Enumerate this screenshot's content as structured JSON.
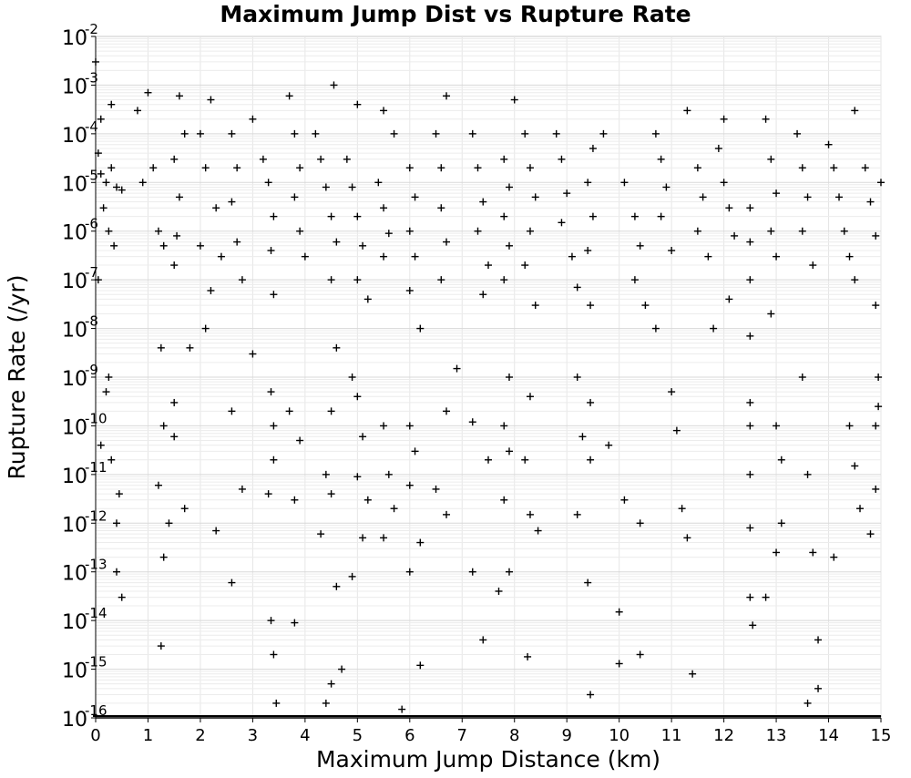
{
  "chart_data": {
    "type": "scatter",
    "title": "Maximum Jump Dist vs Rupture Rate",
    "xlabel": "Maximum Jump Distance (km)",
    "ylabel": "Rupture Rate (/yr)",
    "xlim": [
      0,
      15
    ],
    "ylim": [
      1e-16,
      0.01
    ],
    "yscale": "log",
    "grid": true,
    "legend": "none",
    "x_ticks": [
      "0",
      "1",
      "2",
      "3",
      "4",
      "5",
      "6",
      "7",
      "8",
      "9",
      "10",
      "11",
      "12",
      "13",
      "14",
      "15"
    ],
    "y_ticks": [
      {
        "base": "10",
        "exp": "-16"
      },
      {
        "base": "10",
        "exp": "-15"
      },
      {
        "base": "10",
        "exp": "-14"
      },
      {
        "base": "10",
        "exp": "-13"
      },
      {
        "base": "10",
        "exp": "-12"
      },
      {
        "base": "10",
        "exp": "-11"
      },
      {
        "base": "10",
        "exp": "-10"
      },
      {
        "base": "10",
        "exp": "-9"
      },
      {
        "base": "10",
        "exp": "-8"
      },
      {
        "base": "10",
        "exp": "-7"
      },
      {
        "base": "10",
        "exp": "-6"
      },
      {
        "base": "10",
        "exp": "-5"
      },
      {
        "base": "10",
        "exp": "-4"
      },
      {
        "base": "10",
        "exp": "-3"
      },
      {
        "base": "10",
        "exp": "-2"
      }
    ],
    "marker": "+",
    "marker_color": "#000000",
    "series": [
      {
        "points": [
          [
            0.0,
            0.003
          ],
          [
            0.05,
            4e-05
          ],
          [
            0.1,
            1.5e-05
          ],
          [
            0.2,
            1e-05
          ],
          [
            0.3,
            2e-05
          ],
          [
            0.4,
            8e-06
          ],
          [
            0.15,
            3e-06
          ],
          [
            0.25,
            1e-06
          ],
          [
            0.35,
            5e-07
          ],
          [
            0.1,
            0.0002
          ],
          [
            0.3,
            0.0004
          ],
          [
            0.5,
            7e-06
          ],
          [
            0.05,
            1e-07
          ],
          [
            0.2,
            5e-10
          ],
          [
            0.3,
            2e-11
          ],
          [
            0.4,
            1e-12
          ],
          [
            0.5,
            3e-14
          ],
          [
            0.4,
            1e-13
          ],
          [
            0.25,
            1e-09
          ],
          [
            0.1,
            4e-11
          ],
          [
            0.45,
            4e-12
          ],
          [
            0.8,
            0.0003
          ],
          [
            0.9,
            1e-05
          ],
          [
            1.0,
            0.0007
          ],
          [
            1.1,
            2e-05
          ],
          [
            1.2,
            1e-06
          ],
          [
            1.3,
            5e-07
          ],
          [
            1.25,
            4e-09
          ],
          [
            1.3,
            1e-10
          ],
          [
            1.2,
            6e-12
          ],
          [
            1.3,
            2e-13
          ],
          [
            1.25,
            3e-15
          ],
          [
            1.4,
            1e-12
          ],
          [
            1.6,
            0.0006
          ],
          [
            1.7,
            0.0001
          ],
          [
            1.5,
            3e-05
          ],
          [
            1.6,
            5e-06
          ],
          [
            1.55,
            8e-07
          ],
          [
            1.5,
            2e-07
          ],
          [
            1.5,
            3e-10
          ],
          [
            1.5,
            6e-11
          ],
          [
            1.7,
            2e-12
          ],
          [
            1.8,
            4e-09
          ],
          [
            2.0,
            0.0001
          ],
          [
            2.2,
            0.0005
          ],
          [
            2.1,
            2e-05
          ],
          [
            2.3,
            3e-06
          ],
          [
            2.0,
            5e-07
          ],
          [
            2.2,
            6e-08
          ],
          [
            2.1,
            1e-08
          ],
          [
            2.3,
            7e-13
          ],
          [
            2.4,
            3e-07
          ],
          [
            2.6,
            0.0001
          ],
          [
            2.7,
            2e-05
          ],
          [
            2.6,
            4e-06
          ],
          [
            2.7,
            6e-07
          ],
          [
            2.8,
            1e-07
          ],
          [
            2.6,
            2e-10
          ],
          [
            2.6,
            6e-14
          ],
          [
            2.8,
            5e-12
          ],
          [
            3.0,
            0.0002
          ],
          [
            3.2,
            3e-05
          ],
          [
            3.3,
            1e-05
          ],
          [
            3.4,
            2e-06
          ],
          [
            3.35,
            4e-07
          ],
          [
            3.4,
            5e-08
          ],
          [
            3.35,
            5e-10
          ],
          [
            3.4,
            1e-10
          ],
          [
            3.4,
            2e-11
          ],
          [
            3.3,
            4e-12
          ],
          [
            3.35,
            1e-14
          ],
          [
            3.4,
            2e-15
          ],
          [
            3.45,
            2e-16
          ],
          [
            3.0,
            3e-09
          ],
          [
            3.7,
            0.0006
          ],
          [
            3.8,
            0.0001
          ],
          [
            3.9,
            2e-05
          ],
          [
            3.8,
            5e-06
          ],
          [
            3.9,
            1e-06
          ],
          [
            4.0,
            3e-07
          ],
          [
            3.7,
            2e-10
          ],
          [
            3.9,
            5e-11
          ],
          [
            3.8,
            3e-12
          ],
          [
            3.8,
            9e-15
          ],
          [
            4.2,
            0.0001
          ],
          [
            4.3,
            3e-05
          ],
          [
            4.4,
            8e-06
          ],
          [
            4.5,
            2e-06
          ],
          [
            4.6,
            6e-07
          ],
          [
            4.5,
            1e-07
          ],
          [
            4.55,
            0.001
          ],
          [
            4.6,
            4e-09
          ],
          [
            4.5,
            2e-10
          ],
          [
            4.4,
            1e-11
          ],
          [
            4.5,
            4e-12
          ],
          [
            4.6,
            5e-14
          ],
          [
            4.5,
            5e-16
          ],
          [
            4.4,
            2e-16
          ],
          [
            4.7,
            1e-15
          ],
          [
            4.3,
            6e-13
          ],
          [
            4.8,
            3e-05
          ],
          [
            4.9,
            8e-06
          ],
          [
            5.0,
            2e-06
          ],
          [
            5.1,
            5e-07
          ],
          [
            5.0,
            1e-07
          ],
          [
            5.2,
            4e-08
          ],
          [
            5.0,
            0.0004
          ],
          [
            4.9,
            1e-09
          ],
          [
            5.0,
            4e-10
          ],
          [
            5.1,
            6e-11
          ],
          [
            5.0,
            9e-12
          ],
          [
            5.1,
            5e-13
          ],
          [
            4.9,
            8e-14
          ],
          [
            5.2,
            3e-12
          ],
          [
            5.5,
            0.0003
          ],
          [
            5.4,
            1e-05
          ],
          [
            5.5,
            3e-06
          ],
          [
            5.6,
            9e-07
          ],
          [
            5.5,
            3e-07
          ],
          [
            5.7,
            0.0001
          ],
          [
            5.5,
            1e-10
          ],
          [
            5.6,
            1e-11
          ],
          [
            5.7,
            2e-12
          ],
          [
            5.5,
            5e-13
          ],
          [
            5.85,
            1.5e-16
          ],
          [
            6.0,
            2e-05
          ],
          [
            6.1,
            5e-06
          ],
          [
            6.0,
            1e-06
          ],
          [
            6.1,
            3e-07
          ],
          [
            6.0,
            6e-08
          ],
          [
            6.2,
            1e-08
          ],
          [
            6.0,
            1e-10
          ],
          [
            6.1,
            3e-11
          ],
          [
            6.0,
            6e-12
          ],
          [
            6.2,
            4e-13
          ],
          [
            6.0,
            1e-13
          ],
          [
            6.2,
            1.2e-15
          ],
          [
            6.5,
            0.0001
          ],
          [
            6.6,
            2e-05
          ],
          [
            6.7,
            0.0006
          ],
          [
            6.6,
            3e-06
          ],
          [
            6.7,
            6e-07
          ],
          [
            6.6,
            1e-07
          ],
          [
            6.7,
            2e-10
          ],
          [
            6.5,
            5e-12
          ],
          [
            6.7,
            1.5e-12
          ],
          [
            6.9,
            1.5e-09
          ],
          [
            7.2,
            0.0001
          ],
          [
            7.3,
            2e-05
          ],
          [
            7.4,
            4e-06
          ],
          [
            7.3,
            1e-06
          ],
          [
            7.5,
            2e-07
          ],
          [
            7.4,
            5e-08
          ],
          [
            7.2,
            1.2e-10
          ],
          [
            7.2,
            1e-13
          ],
          [
            7.4,
            4e-15
          ],
          [
            7.5,
            2e-11
          ],
          [
            7.8,
            3e-05
          ],
          [
            7.9,
            8e-06
          ],
          [
            7.8,
            2e-06
          ],
          [
            7.9,
            5e-07
          ],
          [
            7.8,
            1e-07
          ],
          [
            8.0,
            0.0005
          ],
          [
            7.9,
            1e-09
          ],
          [
            7.8,
            1e-10
          ],
          [
            7.9,
            3e-11
          ],
          [
            7.8,
            3e-12
          ],
          [
            7.9,
            1e-13
          ],
          [
            7.7,
            4e-14
          ],
          [
            8.2,
            0.0001
          ],
          [
            8.3,
            2e-05
          ],
          [
            8.4,
            5e-06
          ],
          [
            8.3,
            1e-06
          ],
          [
            8.2,
            2e-07
          ],
          [
            8.4,
            3e-08
          ],
          [
            8.3,
            4e-10
          ],
          [
            8.2,
            2e-11
          ],
          [
            8.3,
            1.5e-12
          ],
          [
            8.25,
            1.8e-15
          ],
          [
            8.45,
            7e-13
          ],
          [
            8.8,
            0.0001
          ],
          [
            8.9,
            3e-05
          ],
          [
            9.0,
            6e-06
          ],
          [
            8.9,
            1.5e-06
          ],
          [
            9.1,
            3e-07
          ],
          [
            9.2,
            7e-08
          ],
          [
            9.2,
            1e-09
          ],
          [
            9.3,
            6e-11
          ],
          [
            9.2,
            1.5e-12
          ],
          [
            9.45,
            3e-16
          ],
          [
            9.4,
            6e-14
          ],
          [
            9.5,
            5e-05
          ],
          [
            9.4,
            1e-05
          ],
          [
            9.5,
            2e-06
          ],
          [
            9.4,
            4e-07
          ],
          [
            9.45,
            3e-08
          ],
          [
            9.45,
            3e-10
          ],
          [
            9.45,
            2e-11
          ],
          [
            9.8,
            4e-11
          ],
          [
            9.7,
            0.0001
          ],
          [
            10.1,
            1e-05
          ],
          [
            10.3,
            2e-06
          ],
          [
            10.4,
            5e-07
          ],
          [
            10.3,
            1e-07
          ],
          [
            10.5,
            3e-08
          ],
          [
            10.1,
            3e-12
          ],
          [
            10.0,
            1.5e-14
          ],
          [
            10.0,
            1.3e-15
          ],
          [
            10.4,
            2e-15
          ],
          [
            10.4,
            1e-12
          ],
          [
            10.7,
            0.0001
          ],
          [
            10.8,
            3e-05
          ],
          [
            10.9,
            8e-06
          ],
          [
            10.8,
            2e-06
          ],
          [
            11.0,
            4e-07
          ],
          [
            10.7,
            1e-08
          ],
          [
            11.0,
            5e-10
          ],
          [
            11.1,
            8e-11
          ],
          [
            11.2,
            2e-12
          ],
          [
            11.4,
            8e-16
          ],
          [
            11.3,
            5e-13
          ],
          [
            11.3,
            0.0003
          ],
          [
            11.5,
            2e-05
          ],
          [
            11.6,
            5e-06
          ],
          [
            11.5,
            1e-06
          ],
          [
            11.7,
            3e-07
          ],
          [
            11.8,
            1e-08
          ],
          [
            11.9,
            5e-05
          ],
          [
            12.0,
            1e-05
          ],
          [
            12.1,
            3e-06
          ],
          [
            12.2,
            8e-07
          ],
          [
            12.0,
            0.0002
          ],
          [
            12.1,
            4e-08
          ],
          [
            12.5,
            3e-06
          ],
          [
            12.5,
            6e-07
          ],
          [
            12.5,
            1e-07
          ],
          [
            12.5,
            7e-09
          ],
          [
            12.5,
            3e-10
          ],
          [
            12.5,
            1e-11
          ],
          [
            12.5,
            8e-13
          ],
          [
            12.5,
            3e-14
          ],
          [
            12.55,
            8e-15
          ],
          [
            12.5,
            1e-10
          ],
          [
            12.8,
            0.0002
          ],
          [
            12.9,
            3e-05
          ],
          [
            13.0,
            6e-06
          ],
          [
            12.9,
            1e-06
          ],
          [
            13.0,
            3e-07
          ],
          [
            12.9,
            2e-08
          ],
          [
            13.0,
            1e-10
          ],
          [
            13.1,
            2e-11
          ],
          [
            13.1,
            1e-12
          ],
          [
            13.0,
            2.5e-13
          ],
          [
            12.8,
            3e-14
          ],
          [
            13.4,
            0.0001
          ],
          [
            13.5,
            2e-05
          ],
          [
            13.6,
            5e-06
          ],
          [
            13.5,
            1e-06
          ],
          [
            13.7,
            2e-07
          ],
          [
            13.5,
            1e-09
          ],
          [
            13.6,
            1e-11
          ],
          [
            13.6,
            2e-16
          ],
          [
            13.8,
            4e-15
          ],
          [
            13.8,
            4e-16
          ],
          [
            13.7,
            2.5e-13
          ],
          [
            14.0,
            6e-05
          ],
          [
            14.1,
            2e-05
          ],
          [
            14.2,
            5e-06
          ],
          [
            14.3,
            1e-06
          ],
          [
            14.4,
            3e-07
          ],
          [
            14.5,
            1e-07
          ],
          [
            14.4,
            1e-10
          ],
          [
            14.5,
            1.5e-11
          ],
          [
            14.6,
            2e-12
          ],
          [
            14.5,
            0.0003
          ],
          [
            14.1,
            2e-13
          ],
          [
            14.7,
            2e-05
          ],
          [
            14.8,
            4e-06
          ],
          [
            14.9,
            8e-07
          ],
          [
            15.0,
            1e-05
          ],
          [
            14.9,
            3e-08
          ],
          [
            14.95,
            1e-09
          ],
          [
            14.9,
            1e-10
          ],
          [
            14.9,
            5e-12
          ],
          [
            14.8,
            6e-13
          ],
          [
            14.95,
            2.5e-10
          ]
        ]
      }
    ]
  }
}
